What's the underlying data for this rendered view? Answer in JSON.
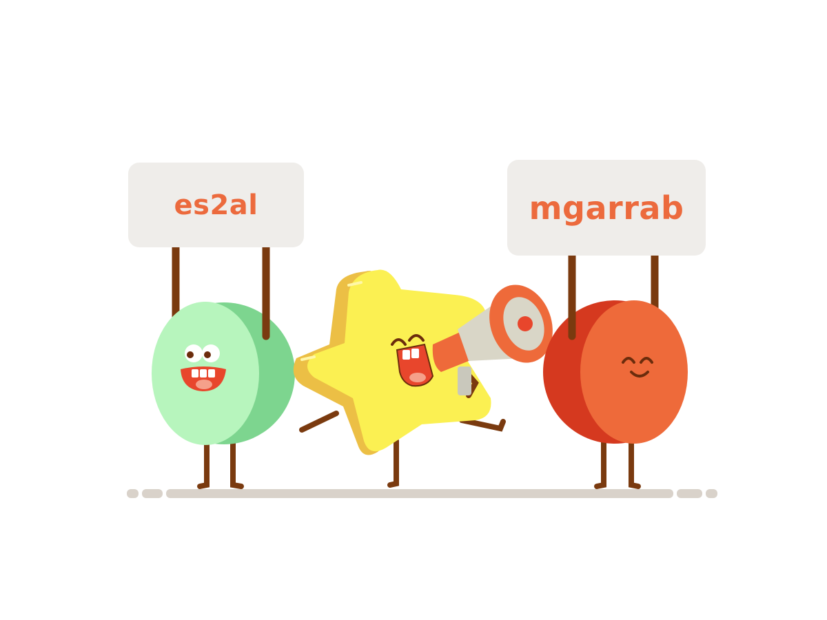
{
  "illustration": {
    "signs": {
      "left_text": "es2al",
      "right_text": "mgarrab"
    },
    "characters": [
      {
        "name": "green-circle-character",
        "color": "#b7f5bd"
      },
      {
        "name": "yellow-star-character",
        "color": "#fbf052"
      },
      {
        "name": "red-circle-character",
        "color": "#ee6a3a"
      }
    ],
    "colors": {
      "background": "#ffffff",
      "sign_fill": "#efedea",
      "sign_text": "#ec6a3d",
      "limb_brown": "#7a3a0f",
      "ground": "#d9d2ca"
    }
  }
}
